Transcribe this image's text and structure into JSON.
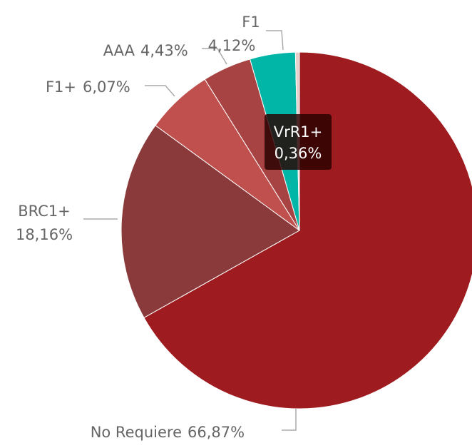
{
  "chart_data": {
    "type": "pie",
    "categories": [
      "No Requiere",
      "BRC1+",
      "F1+",
      "AAA",
      "F1",
      "VrR1+"
    ],
    "values": [
      66.87,
      18.16,
      6.07,
      4.43,
      4.12,
      0.36
    ],
    "value_labels": [
      "66,87%",
      "18,16%",
      "6,07%",
      "4,43%",
      "4,12%",
      "0,36%"
    ],
    "colors": [
      "#9e1c1f",
      "#8a3a3a",
      "#c0504d",
      "#a84343",
      "#01b6a7",
      "#e6cfc8"
    ]
  }
}
